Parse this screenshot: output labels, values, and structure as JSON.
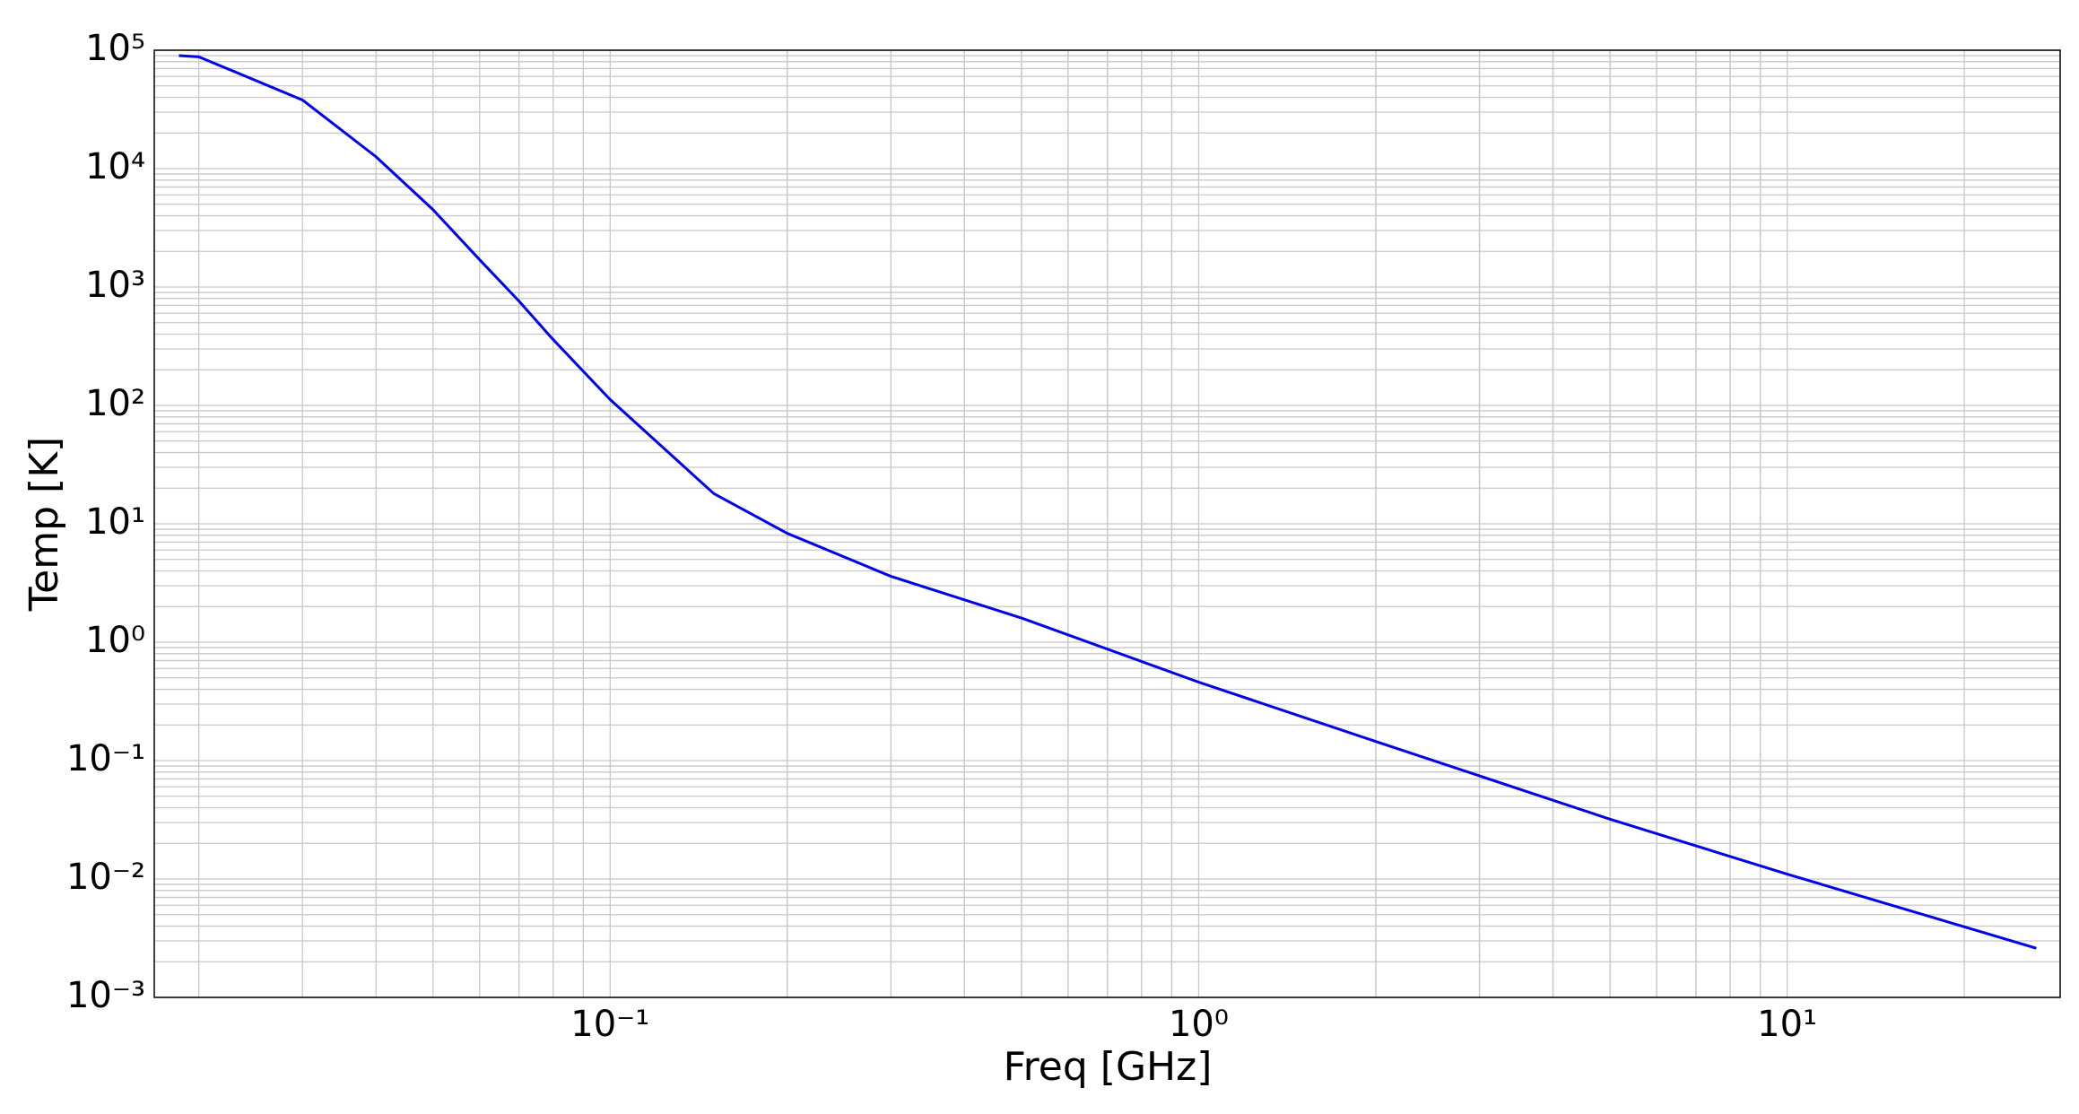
{
  "chart_data": {
    "type": "line",
    "x_label": "Freq [GHz]",
    "y_label": "Temp [K]",
    "x_scale": "log",
    "y_scale": "log",
    "grid": true,
    "minor_grid": true,
    "xlim": [
      0.0168,
      29.1
    ],
    "ylim": [
      0.001,
      100000
    ],
    "xticks": [
      {
        "value": 0.1,
        "label": "10⁻¹"
      },
      {
        "value": 1,
        "label": "10⁰"
      },
      {
        "value": 10,
        "label": "10¹"
      }
    ],
    "yticks": [
      {
        "value": 0.001,
        "label": "10⁻³"
      },
      {
        "value": 0.01,
        "label": "10⁻²"
      },
      {
        "value": 0.1,
        "label": "10⁻¹"
      },
      {
        "value": 1,
        "label": "10⁰"
      },
      {
        "value": 10,
        "label": "10¹"
      },
      {
        "value": 100,
        "label": "10²"
      },
      {
        "value": 1000,
        "label": "10³"
      },
      {
        "value": 10000,
        "label": "10⁴"
      },
      {
        "value": 100000,
        "label": "10⁵"
      }
    ],
    "x": [
      0.0185,
      0.02,
      0.03,
      0.04,
      0.05,
      0.06,
      0.07,
      0.08,
      0.1,
      0.15,
      0.2,
      0.3,
      0.5,
      1,
      2,
      5,
      10,
      26.5
    ],
    "series": [
      {
        "color": "#0000ee",
        "values": [
          90000,
          88000,
          38000,
          12600,
          4500,
          1700,
          760,
          360,
          112,
          18,
          8.3,
          3.6,
          1.6,
          0.46,
          0.145,
          0.032,
          0.011,
          0.0026
        ]
      }
    ]
  }
}
